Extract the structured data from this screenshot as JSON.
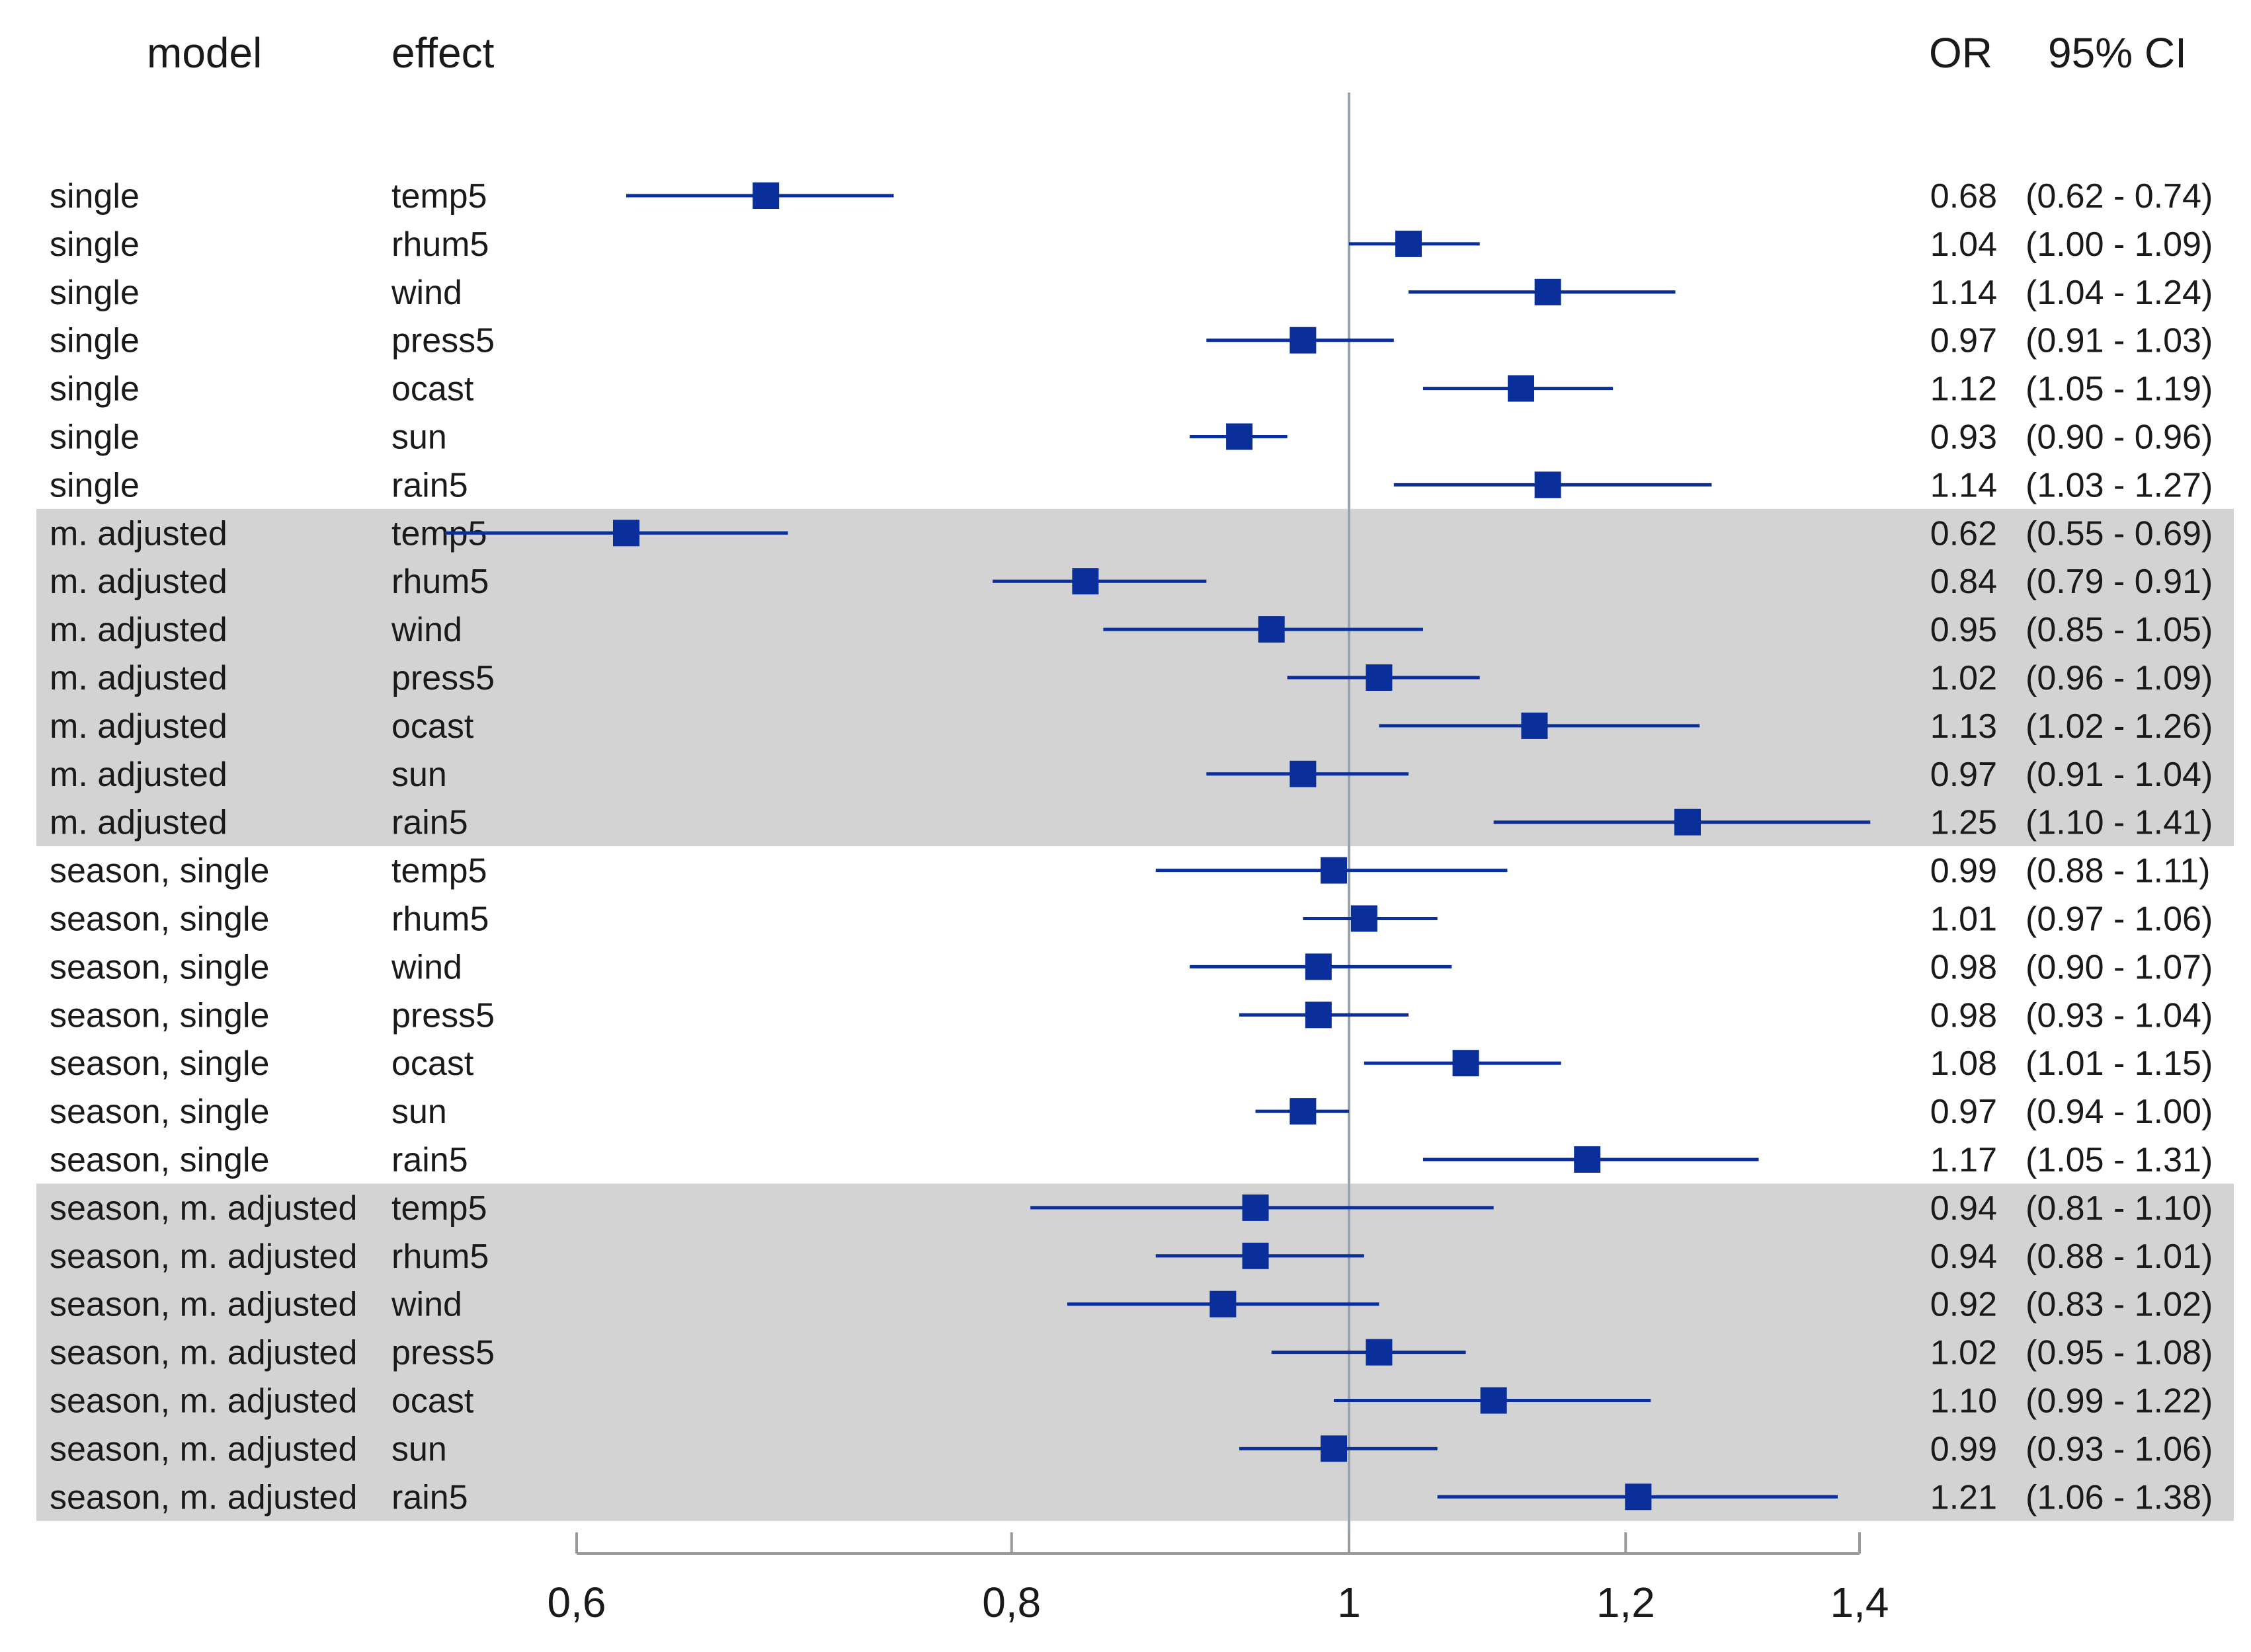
{
  "chart_data": {
    "type": "forest",
    "headers": {
      "model": "model",
      "effect": "effect",
      "or": "OR",
      "ci": "95% CI"
    },
    "reference_line": 1,
    "x_scale": "log",
    "xlim": [
      0.6,
      1.4
    ],
    "x_ticks": [
      {
        "value": 0.6,
        "label": "0,6"
      },
      {
        "value": 0.8,
        "label": "0,8"
      },
      {
        "value": 1.0,
        "label": "1"
      },
      {
        "value": 1.2,
        "label": "1,2"
      },
      {
        "value": 1.4,
        "label": "1,4"
      }
    ],
    "groups": [
      {
        "name": "single",
        "shaded": false
      },
      {
        "name": "m. adjusted",
        "shaded": true
      },
      {
        "name": "season, single",
        "shaded": false
      },
      {
        "name": "season, m. adjusted",
        "shaded": true
      }
    ],
    "rows": [
      {
        "model": "single",
        "effect": "temp5",
        "or": 0.68,
        "lo": 0.62,
        "hi": 0.74,
        "or_text": "0.68",
        "ci_text": "(0.62 - 0.74)"
      },
      {
        "model": "single",
        "effect": "rhum5",
        "or": 1.04,
        "lo": 1.0,
        "hi": 1.09,
        "or_text": "1.04",
        "ci_text": "(1.00 - 1.09)"
      },
      {
        "model": "single",
        "effect": "wind",
        "or": 1.14,
        "lo": 1.04,
        "hi": 1.24,
        "or_text": "1.14",
        "ci_text": "(1.04 - 1.24)"
      },
      {
        "model": "single",
        "effect": "press5",
        "or": 0.97,
        "lo": 0.91,
        "hi": 1.03,
        "or_text": "0.97",
        "ci_text": "(0.91 - 1.03)"
      },
      {
        "model": "single",
        "effect": "ocast",
        "or": 1.12,
        "lo": 1.05,
        "hi": 1.19,
        "or_text": "1.12",
        "ci_text": "(1.05 - 1.19)"
      },
      {
        "model": "single",
        "effect": "sun",
        "or": 0.93,
        "lo": 0.9,
        "hi": 0.96,
        "or_text": "0.93",
        "ci_text": "(0.90 - 0.96)"
      },
      {
        "model": "single",
        "effect": "rain5",
        "or": 1.14,
        "lo": 1.03,
        "hi": 1.27,
        "or_text": "1.14",
        "ci_text": "(1.03 - 1.27)"
      },
      {
        "model": "m. adjusted",
        "effect": "temp5",
        "or": 0.62,
        "lo": 0.55,
        "hi": 0.69,
        "or_text": "0.62",
        "ci_text": "(0.55 - 0.69)"
      },
      {
        "model": "m. adjusted",
        "effect": "rhum5",
        "or": 0.84,
        "lo": 0.79,
        "hi": 0.91,
        "or_text": "0.84",
        "ci_text": "(0.79 - 0.91)"
      },
      {
        "model": "m. adjusted",
        "effect": "wind",
        "or": 0.95,
        "lo": 0.85,
        "hi": 1.05,
        "or_text": "0.95",
        "ci_text": "(0.85 - 1.05)"
      },
      {
        "model": "m. adjusted",
        "effect": "press5",
        "or": 1.02,
        "lo": 0.96,
        "hi": 1.09,
        "or_text": "1.02",
        "ci_text": "(0.96 - 1.09)"
      },
      {
        "model": "m. adjusted",
        "effect": "ocast",
        "or": 1.13,
        "lo": 1.02,
        "hi": 1.26,
        "or_text": "1.13",
        "ci_text": "(1.02 - 1.26)"
      },
      {
        "model": "m. adjusted",
        "effect": "sun",
        "or": 0.97,
        "lo": 0.91,
        "hi": 1.04,
        "or_text": "0.97",
        "ci_text": "(0.91 - 1.04)"
      },
      {
        "model": "m. adjusted",
        "effect": "rain5",
        "or": 1.25,
        "lo": 1.1,
        "hi": 1.41,
        "or_text": "1.25",
        "ci_text": "(1.10 - 1.41)"
      },
      {
        "model": "season, single",
        "effect": "temp5",
        "or": 0.99,
        "lo": 0.88,
        "hi": 1.11,
        "or_text": "0.99",
        "ci_text": "(0.88 - 1.11)"
      },
      {
        "model": "season, single",
        "effect": "rhum5",
        "or": 1.01,
        "lo": 0.97,
        "hi": 1.06,
        "or_text": "1.01",
        "ci_text": "(0.97 - 1.06)"
      },
      {
        "model": "season, single",
        "effect": "wind",
        "or": 0.98,
        "lo": 0.9,
        "hi": 1.07,
        "or_text": "0.98",
        "ci_text": "(0.90 - 1.07)"
      },
      {
        "model": "season, single",
        "effect": "press5",
        "or": 0.98,
        "lo": 0.93,
        "hi": 1.04,
        "or_text": "0.98",
        "ci_text": "(0.93 - 1.04)"
      },
      {
        "model": "season, single",
        "effect": "ocast",
        "or": 1.08,
        "lo": 1.01,
        "hi": 1.15,
        "or_text": "1.08",
        "ci_text": "(1.01 - 1.15)"
      },
      {
        "model": "season, single",
        "effect": "sun",
        "or": 0.97,
        "lo": 0.94,
        "hi": 1.0,
        "or_text": "0.97",
        "ci_text": "(0.94 - 1.00)"
      },
      {
        "model": "season, single",
        "effect": "rain5",
        "or": 1.17,
        "lo": 1.05,
        "hi": 1.31,
        "or_text": "1.17",
        "ci_text": "(1.05 - 1.31)"
      },
      {
        "model": "season, m. adjusted",
        "effect": "temp5",
        "or": 0.94,
        "lo": 0.81,
        "hi": 1.1,
        "or_text": "0.94",
        "ci_text": "(0.81 - 1.10)"
      },
      {
        "model": "season, m. adjusted",
        "effect": "rhum5",
        "or": 0.94,
        "lo": 0.88,
        "hi": 1.01,
        "or_text": "0.94",
        "ci_text": "(0.88 - 1.01)"
      },
      {
        "model": "season, m. adjusted",
        "effect": "wind",
        "or": 0.92,
        "lo": 0.83,
        "hi": 1.02,
        "or_text": "0.92",
        "ci_text": "(0.83 - 1.02)"
      },
      {
        "model": "season, m. adjusted",
        "effect": "press5",
        "or": 1.02,
        "lo": 0.95,
        "hi": 1.08,
        "or_text": "1.02",
        "ci_text": "(0.95 - 1.08)"
      },
      {
        "model": "season, m. adjusted",
        "effect": "ocast",
        "or": 1.1,
        "lo": 0.99,
        "hi": 1.22,
        "or_text": "1.10",
        "ci_text": "(0.99 - 1.22)"
      },
      {
        "model": "season, m. adjusted",
        "effect": "sun",
        "or": 0.99,
        "lo": 0.93,
        "hi": 1.06,
        "or_text": "0.99",
        "ci_text": "(0.93 - 1.06)"
      },
      {
        "model": "season, m. adjusted",
        "effect": "rain5",
        "or": 1.21,
        "lo": 1.06,
        "hi": 1.38,
        "or_text": "1.21",
        "ci_text": "(1.06 - 1.38)"
      }
    ],
    "colors": {
      "marker": "#0a2f9a",
      "shade": "#d3d3d3",
      "reference": "#9aa3ab",
      "axis": "#9a9a9a"
    }
  }
}
